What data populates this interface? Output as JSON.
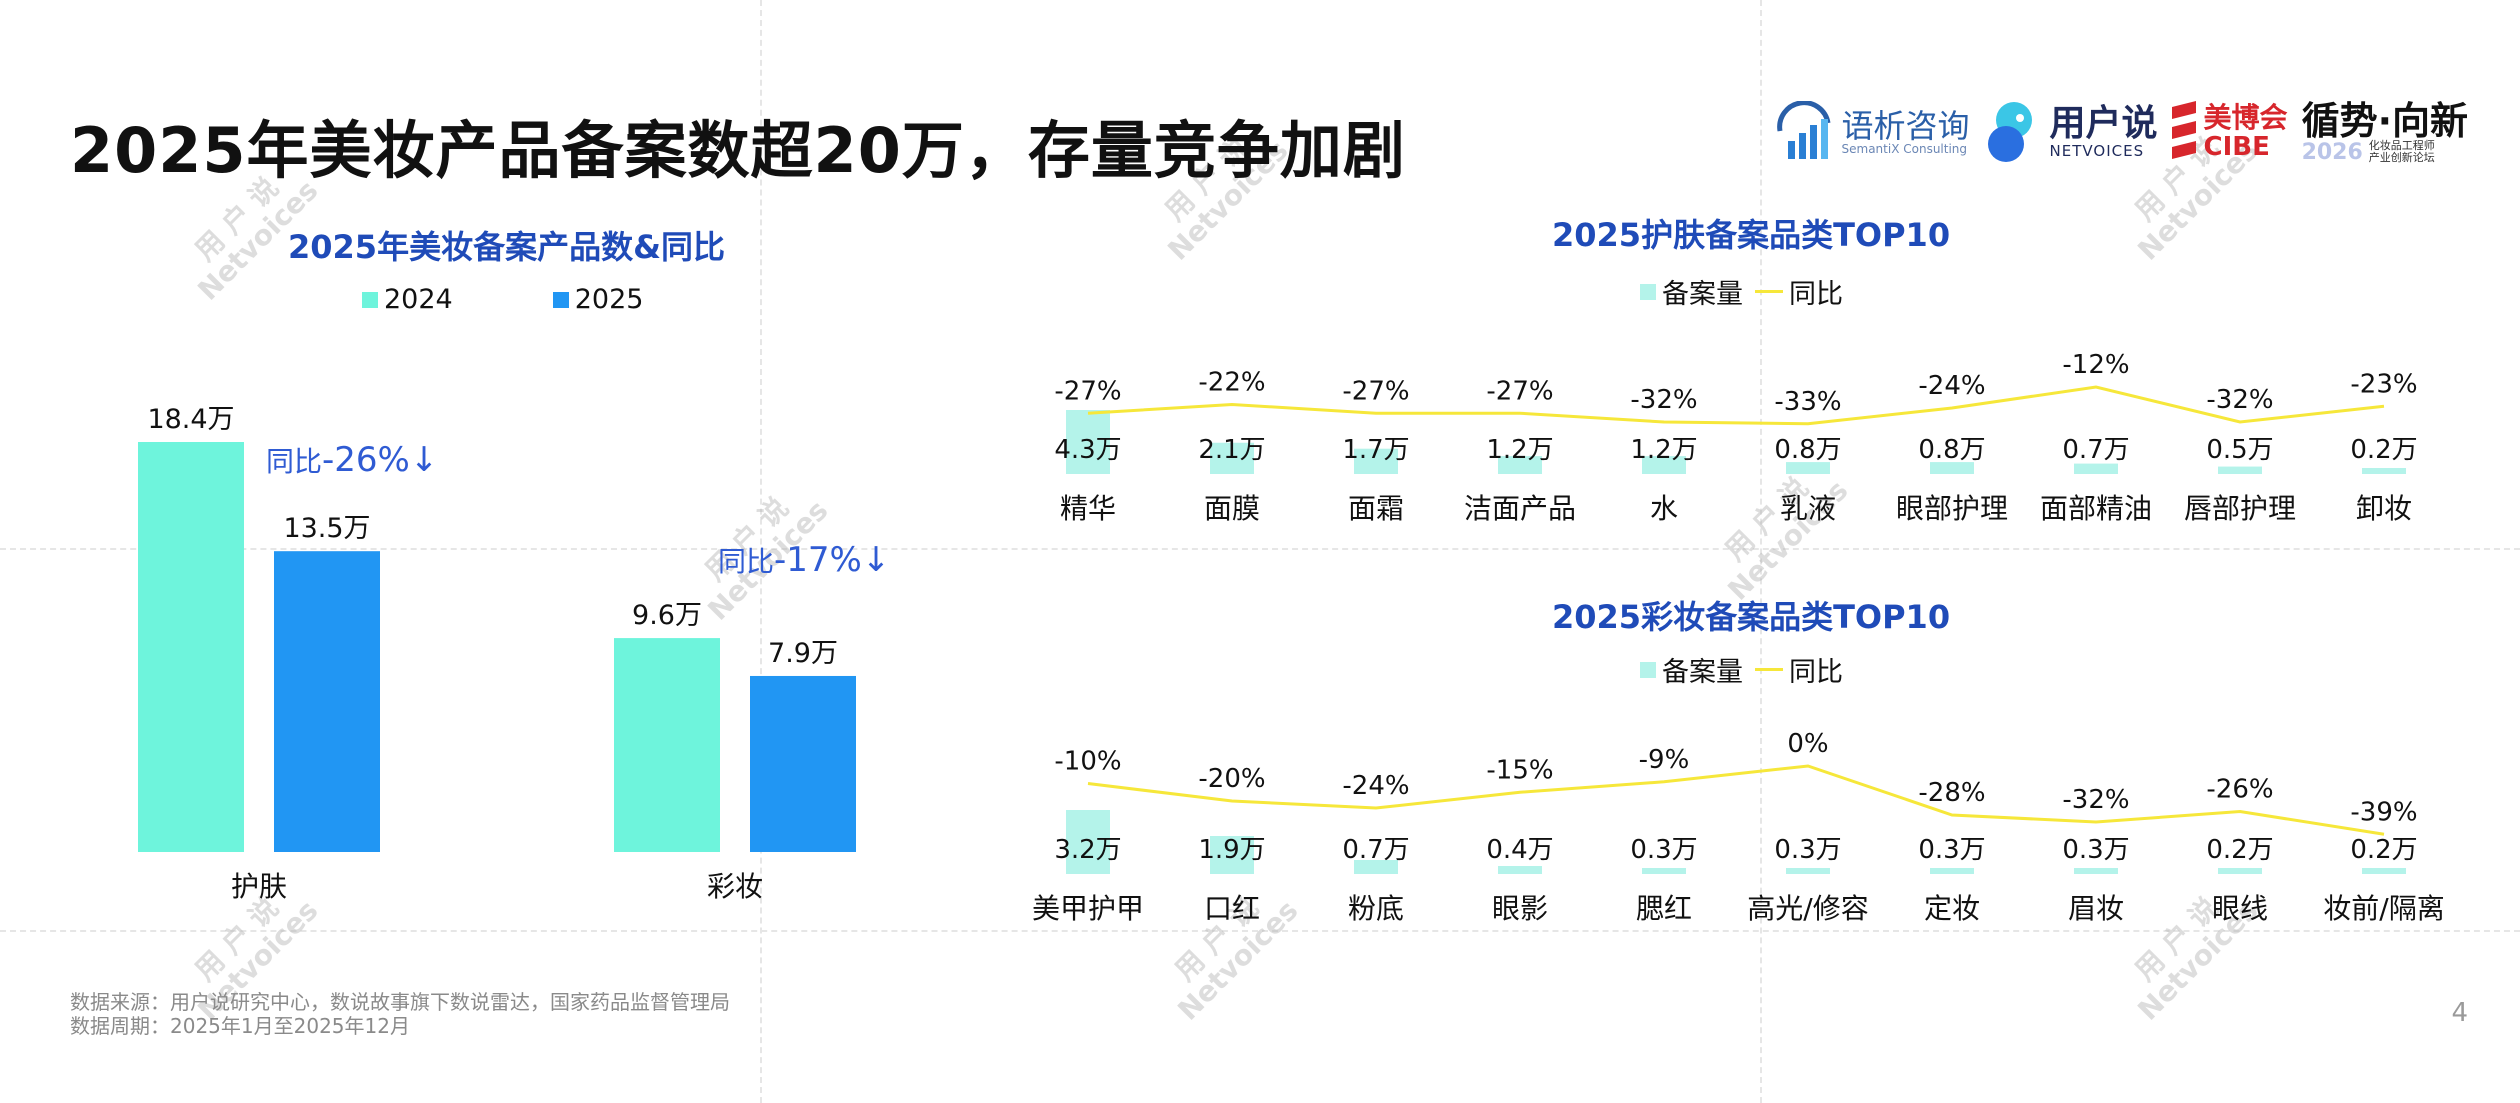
{
  "page": {
    "title": "2025年美妆产品备案数超20万，存量竞争加剧",
    "page_number": "4",
    "footnote_source": "数据来源：用户说研究中心，数说故事旗下数说雷达，国家药品监督管理局",
    "footnote_period": "数据周期：2025年1月至2025年12月"
  },
  "logos": {
    "semantix_cn": "语析咨询",
    "semantix_en": "SemantiX Consulting",
    "netvoices_cn": "用户说",
    "netvoices_en": "NETVOICES",
    "cibe_cn": "美博会",
    "cibe_en": "CIBE",
    "forum_cn": "循势·向新",
    "forum_year": "2026",
    "forum_sub": "化妆品工程师产业创新论坛"
  },
  "watermark": {
    "cn": "用 户 说",
    "en": "Netvoices"
  },
  "colors": {
    "c2024": "#6ef4dc",
    "c2025": "#2196f3",
    "bar_light": "#b4f3ea",
    "line": "#f6e73a",
    "title_blue": "#1f4bb8",
    "annot_blue": "#2f5bd3"
  },
  "chart_data": [
    {
      "type": "bar",
      "title": "2025年美妆备案产品数&同比",
      "unit": "万",
      "categories": [
        "护肤",
        "彩妆"
      ],
      "series": [
        {
          "name": "2024",
          "values": [
            18.4,
            9.6
          ],
          "labels": [
            "18.4万",
            "9.6万"
          ]
        },
        {
          "name": "2025",
          "values": [
            13.5,
            7.9
          ],
          "labels": [
            "13.5万",
            "7.9万"
          ]
        }
      ],
      "annotations": [
        {
          "prefix": "同比",
          "value": "-26%↓"
        },
        {
          "prefix": "同比",
          "value": "-17%↓"
        }
      ]
    },
    {
      "type": "bar",
      "title": "2025护肤备案品类TOP10",
      "legend": [
        "备案量",
        "同比"
      ],
      "categories": [
        "精华",
        "面膜",
        "面霜",
        "洁面产品",
        "水",
        "乳液",
        "眼部护理",
        "面部精油",
        "唇部护理",
        "卸妆"
      ],
      "values": [
        4.3,
        2.1,
        1.7,
        1.2,
        1.2,
        0.8,
        0.8,
        0.7,
        0.5,
        0.2
      ],
      "value_labels": [
        "4.3万",
        "2.1万",
        "1.7万",
        "1.2万",
        "1.2万",
        "0.8万",
        "0.8万",
        "0.7万",
        "0.5万",
        "0.2万"
      ],
      "yoy": [
        -27,
        -22,
        -27,
        -27,
        -32,
        -33,
        -24,
        -12,
        -32,
        -23
      ],
      "yoy_labels": [
        "-27%",
        "-22%",
        "-27%",
        "-27%",
        "-32%",
        "-33%",
        "-24%",
        "-12%",
        "-32%",
        "-23%"
      ]
    },
    {
      "type": "bar",
      "title": "2025彩妆备案品类TOP10",
      "legend": [
        "备案量",
        "同比"
      ],
      "categories": [
        "美甲护甲",
        "口红",
        "粉底",
        "眼影",
        "腮红",
        "高光/修容",
        "定妆",
        "眉妆",
        "眼线",
        "妆前/隔离"
      ],
      "values": [
        3.2,
        1.9,
        0.7,
        0.4,
        0.3,
        0.3,
        0.3,
        0.3,
        0.2,
        0.2
      ],
      "value_labels": [
        "3.2万",
        "1.9万",
        "0.7万",
        "0.4万",
        "0.3万",
        "0.3万",
        "0.3万",
        "0.3万",
        "0.2万",
        "0.2万"
      ],
      "yoy": [
        -10,
        -20,
        -24,
        -15,
        -9,
        0,
        -28,
        -32,
        -26,
        -39
      ],
      "yoy_labels": [
        "-10%",
        "-20%",
        "-24%",
        "-15%",
        "-9%",
        "0%",
        "-28%",
        "-32%",
        "-26%",
        "-39%"
      ]
    }
  ]
}
